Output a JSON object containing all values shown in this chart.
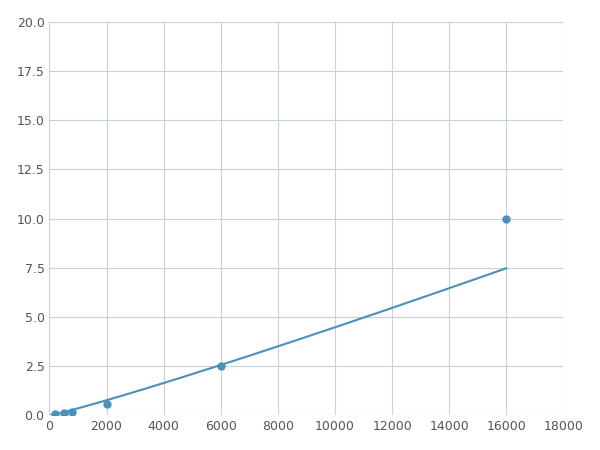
{
  "x_data": [
    200,
    500,
    800,
    2000,
    6000,
    16000
  ],
  "y_data": [
    0.1,
    0.15,
    0.2,
    0.6,
    2.5,
    10.0
  ],
  "line_color": "#4a90b8",
  "marker_color": "#4a90b8",
  "marker_size": 5,
  "xlim": [
    0,
    18000
  ],
  "ylim": [
    0,
    20.0
  ],
  "xticks": [
    0,
    2000,
    4000,
    6000,
    8000,
    10000,
    12000,
    14000,
    16000,
    18000
  ],
  "yticks": [
    0.0,
    2.5,
    5.0,
    7.5,
    10.0,
    12.5,
    15.0,
    17.5,
    20.0
  ],
  "grid_color": "#c8d0d8",
  "background_color": "#ffffff",
  "fig_width": 6.0,
  "fig_height": 4.5
}
